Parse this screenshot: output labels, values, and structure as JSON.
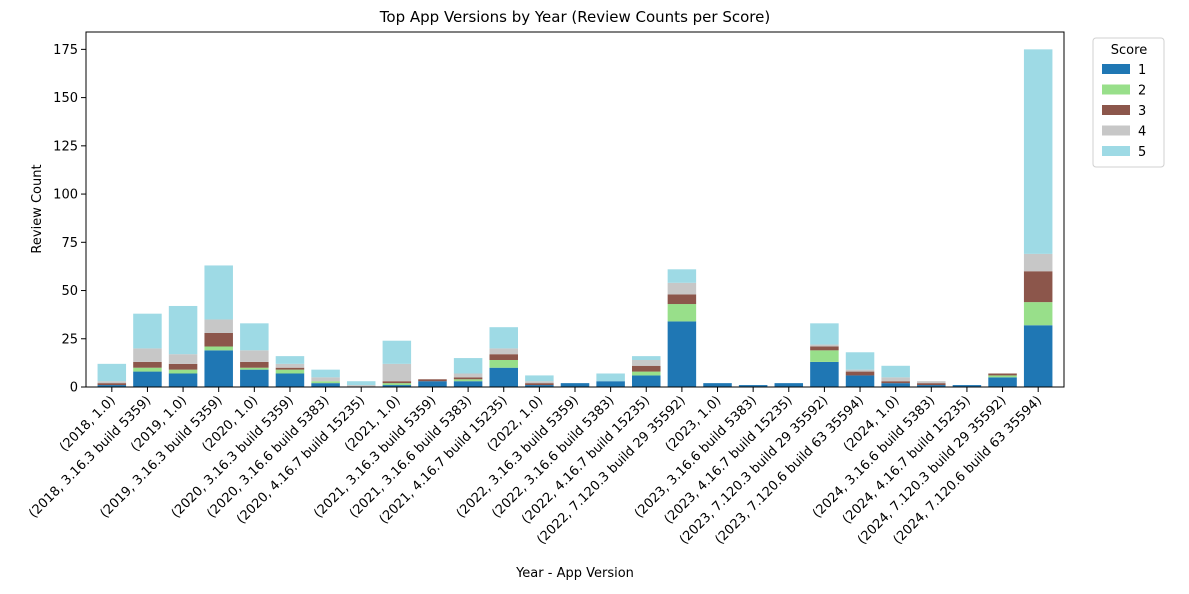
{
  "chart_data": {
    "type": "bar",
    "stacked": true,
    "title": "Top App Versions by Year (Review Counts per Score)",
    "xlabel": "Year - App Version",
    "ylabel": "Review Count",
    "ylim": [
      0,
      184
    ],
    "yticks": [
      0,
      25,
      50,
      75,
      100,
      125,
      150,
      175
    ],
    "grid": false,
    "legend": {
      "title": "Score",
      "placement": "outside-top-right"
    },
    "categories": [
      "(2018, 1.0)",
      "(2018, 3.16.3 build 5359)",
      "(2019, 1.0)",
      "(2019, 3.16.3 build 5359)",
      "(2020, 1.0)",
      "(2020, 3.16.3 build 5359)",
      "(2020, 3.16.6 build 5383)",
      "(2020, 4.16.7 build 15235)",
      "(2021, 1.0)",
      "(2021, 3.16.3 build 5359)",
      "(2021, 3.16.6 build 5383)",
      "(2021, 4.16.7 build 15235)",
      "(2022, 1.0)",
      "(2022, 3.16.3 build 5359)",
      "(2022, 3.16.6 build 5383)",
      "(2022, 4.16.7 build 15235)",
      "(2022, 7.120.3 build 29 35592)",
      "(2023, 1.0)",
      "(2023, 3.16.6 build 5383)",
      "(2023, 4.16.7 build 15235)",
      "(2023, 7.120.3 build 29 35592)",
      "(2023, 7.120.6 build 63 35594)",
      "(2024, 1.0)",
      "(2024, 3.16.6 build 5383)",
      "(2024, 4.16.7 build 15235)",
      "(2024, 7.120.3 build 29 35592)",
      "(2024, 7.120.6 build 63 35594)"
    ],
    "series": [
      {
        "name": "1",
        "color": "#1f77b4",
        "values": [
          1,
          8,
          7,
          19,
          9,
          7,
          2,
          0,
          1,
          3,
          3,
          10,
          1,
          2,
          3,
          6,
          34,
          2,
          1,
          2,
          13,
          6,
          2,
          1,
          1,
          5,
          32
        ]
      },
      {
        "name": "2",
        "color": "#98df8a",
        "values": [
          0,
          2,
          2,
          2,
          1,
          2,
          1,
          0,
          1,
          0,
          1,
          4,
          0,
          0,
          0,
          2,
          9,
          0,
          0,
          0,
          6,
          0,
          0,
          0,
          0,
          1,
          12
        ]
      },
      {
        "name": "3",
        "color": "#8c564b",
        "values": [
          1,
          3,
          3,
          7,
          3,
          1,
          0,
          0,
          1,
          1,
          1,
          3,
          1,
          0,
          0,
          3,
          5,
          0,
          0,
          0,
          2,
          2,
          1,
          1,
          0,
          1,
          16
        ]
      },
      {
        "name": "4",
        "color": "#c7c7c7",
        "values": [
          1,
          7,
          5,
          7,
          6,
          2,
          2,
          1,
          9,
          0,
          2,
          3,
          1,
          0,
          0,
          3,
          6,
          0,
          0,
          0,
          1,
          1,
          2,
          1,
          0,
          0,
          9
        ]
      },
      {
        "name": "5",
        "color": "#9edae5",
        "values": [
          9,
          18,
          25,
          28,
          14,
          4,
          4,
          2,
          12,
          0,
          8,
          11,
          3,
          0,
          4,
          2,
          7,
          0,
          0,
          0,
          11,
          9,
          6,
          0,
          0,
          0,
          106
        ]
      }
    ]
  }
}
